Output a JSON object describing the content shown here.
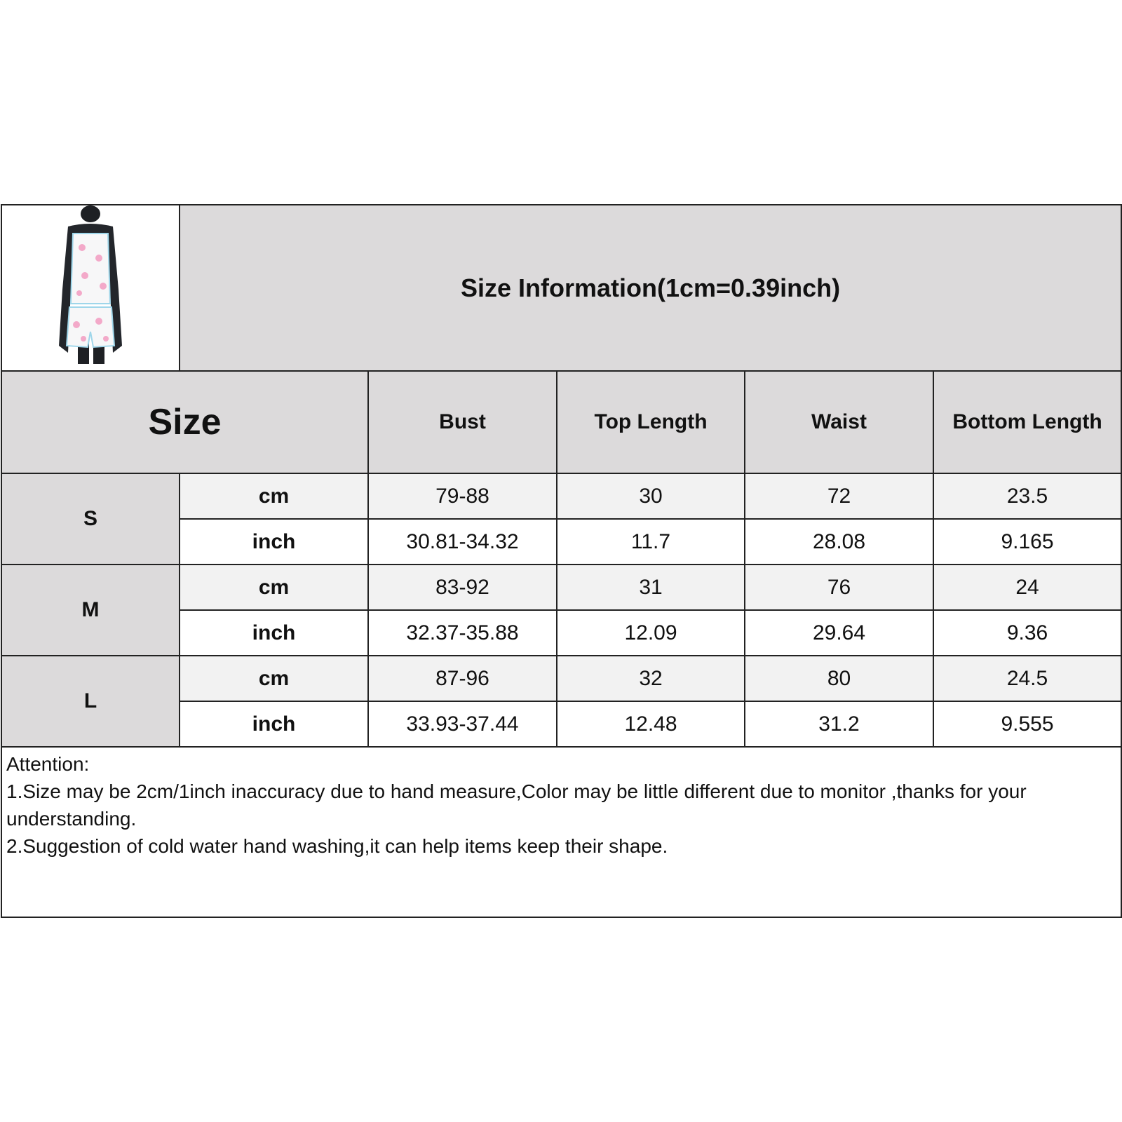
{
  "title": "Size Information(1cm=0.39inch)",
  "product_image": "mannequin wearing white camisole and shorts with pink heart print",
  "header": {
    "size_label": "Size",
    "columns": [
      "Bust",
      "Top Length",
      "Waist",
      "Bottom Length"
    ]
  },
  "rows": [
    {
      "size": "S",
      "cm": {
        "unit": "cm",
        "values": [
          "79-88",
          "30",
          "72",
          "23.5"
        ]
      },
      "inch": {
        "unit": "inch",
        "values": [
          "30.81-34.32",
          "11.7",
          "28.08",
          "9.165"
        ]
      }
    },
    {
      "size": "M",
      "cm": {
        "unit": "cm",
        "values": [
          "83-92",
          "31",
          "76",
          "24"
        ]
      },
      "inch": {
        "unit": "inch",
        "values": [
          "32.37-35.88",
          "12.09",
          "29.64",
          "9.36"
        ]
      }
    },
    {
      "size": "L",
      "cm": {
        "unit": "cm",
        "values": [
          "87-96",
          "32",
          "80",
          "24.5"
        ]
      },
      "inch": {
        "unit": "inch",
        "values": [
          "33.93-37.44",
          "12.48",
          "31.2",
          "9.555"
        ]
      }
    }
  ],
  "notes": {
    "heading": "Attention:",
    "items": [
      "1.Size may be 2cm/1inch inaccuracy due to hand measure,Color may be little different due to monitor ,thanks for your understanding.",
      "2.Suggestion of cold water hand washing,it can help items keep their shape."
    ]
  },
  "colors": {
    "header_bg": "#dcdadb",
    "cm_row_bg": "#f2f2f2",
    "border": "#222222"
  }
}
